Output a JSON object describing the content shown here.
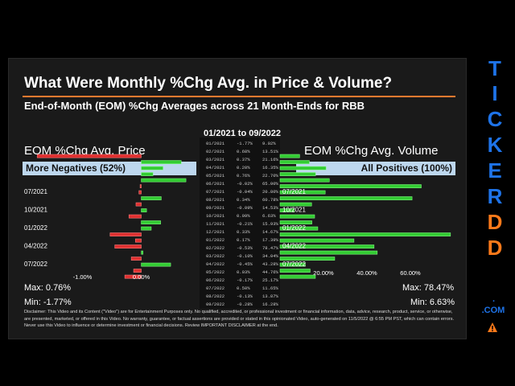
{
  "title": "What Were Monthly %Chg Avg. in Price & Volume?",
  "subtitle": "End-of-Month (EOM) %Chg Averages across 21 Month-Ends for RBB",
  "period_label": "01/2021 to 09/2022",
  "colors": {
    "accent": "#ff7a2f",
    "brand_blue": "#1e73e8",
    "brand_orange": "#ff7a1a",
    "positive": "#33cc33",
    "negative": "#e03030",
    "header_bg": "#bdd7ee"
  },
  "price": {
    "heading": "EOM %Chg Avg. Price",
    "banner": "More Negatives (52%)",
    "max": "Max: 0.76%",
    "min": "Min: -1.77%"
  },
  "volume": {
    "heading": "EOM %Chg Avg. Volume",
    "banner": "All Positives (100%)",
    "max": "Max: 78.47%",
    "min": "Min: 6.63%"
  },
  "table_rows": [
    [
      "01/2021",
      "-1.77%",
      "9.02%"
    ],
    [
      "02/2021",
      "0.68%",
      "13.51%"
    ],
    [
      "03/2021",
      "0.37%",
      "21.16%"
    ],
    [
      "04/2021",
      "0.20%",
      "16.35%"
    ],
    [
      "05/2021",
      "0.76%",
      "22.70%"
    ],
    [
      "06/2021",
      "-0.02%",
      "65.00%"
    ],
    [
      "07/2021",
      "-0.04%",
      "20.80%"
    ],
    [
      "08/2021",
      "0.34%",
      "60.78%"
    ],
    [
      "09/2021",
      "-0.09%",
      "14.53%"
    ],
    [
      "10/2021",
      "0.09%",
      "6.63%"
    ],
    [
      "11/2021",
      "-0.21%",
      "15.93%"
    ],
    [
      "12/2021",
      "0.33%",
      "14.67%"
    ],
    [
      "01/2022",
      "0.17%",
      "17.39%"
    ],
    [
      "02/2022",
      "-0.53%",
      "78.47%"
    ],
    [
      "03/2022",
      "-0.10%",
      "34.04%"
    ],
    [
      "04/2022",
      "-0.45%",
      "43.28%"
    ],
    [
      "05/2022",
      "0.03%",
      "44.76%"
    ],
    [
      "06/2022",
      "-0.17%",
      "25.17%"
    ],
    [
      "07/2022",
      "0.50%",
      "11.65%"
    ],
    [
      "08/2022",
      "-0.13%",
      "13.87%"
    ],
    [
      "09/2022",
      "-0.28%",
      "16.28%"
    ]
  ],
  "chart_data": [
    {
      "type": "bar",
      "orientation": "horizontal",
      "title": "EOM %Chg Avg. Price",
      "categories": [
        "01/2021",
        "02/2021",
        "03/2021",
        "04/2021",
        "05/2021",
        "06/2021",
        "07/2021",
        "08/2021",
        "09/2021",
        "10/2021",
        "11/2021",
        "12/2021",
        "01/2022",
        "02/2022",
        "03/2022",
        "04/2022",
        "05/2022",
        "06/2022",
        "07/2022",
        "08/2022",
        "09/2022"
      ],
      "values": [
        -1.77,
        0.68,
        0.37,
        0.2,
        0.76,
        -0.02,
        -0.04,
        0.34,
        -0.09,
        0.09,
        -0.21,
        0.33,
        0.17,
        -0.53,
        -0.1,
        -0.45,
        0.03,
        -0.17,
        0.5,
        -0.13,
        -0.28
      ],
      "category_tick_labels": [
        "07/2021",
        "10/2021",
        "01/2022",
        "04/2022",
        "07/2022"
      ],
      "xticks": [
        "-1.00%",
        "0.00%"
      ],
      "xlim": [
        -1.8,
        0.8
      ]
    },
    {
      "type": "bar",
      "orientation": "horizontal",
      "title": "EOM %Chg Avg. Volume",
      "categories": [
        "01/2021",
        "02/2021",
        "03/2021",
        "04/2021",
        "05/2021",
        "06/2021",
        "07/2021",
        "08/2021",
        "09/2021",
        "10/2021",
        "11/2021",
        "12/2021",
        "01/2022",
        "02/2022",
        "03/2022",
        "04/2022",
        "05/2022",
        "06/2022",
        "07/2022",
        "08/2022",
        "09/2022"
      ],
      "values": [
        9.02,
        13.51,
        21.16,
        16.35,
        22.7,
        65.0,
        20.8,
        60.78,
        14.53,
        6.63,
        15.93,
        14.67,
        17.39,
        78.47,
        34.04,
        43.28,
        44.76,
        25.17,
        11.65,
        13.87,
        16.28
      ],
      "category_tick_labels": [
        "07/2021",
        "10/2021",
        "01/2022",
        "04/2022",
        "07/2022"
      ],
      "xticks": [
        "20.00%",
        "40.00%",
        "60.00%"
      ],
      "xlim": [
        0,
        80
      ]
    }
  ],
  "brand": {
    "letters": [
      "T",
      "I",
      "C",
      "K",
      "E",
      "R"
    ],
    "orange_letters": [
      "D",
      "D"
    ],
    "dot": ".",
    "suffix": ".COM"
  },
  "disclaimer": "Disclaimer: This Video and its Content (\"Video\") are for Entertainment Purposes only. No qualified, accredited, or professional investment or financial information, data, advice, research, product, service, or otherwise, are presented, marketed, or offered in this Video. No warranty, guarantee, or factual assertions are provided or stated in this opinionated Video, auto-generated on 11/5/2022 @ 6:55 PM PST, which can contain errors. Never use this Video to influence or determine investment or financial decisions. Review IMPORTANT DISCLAIMER at the end."
}
